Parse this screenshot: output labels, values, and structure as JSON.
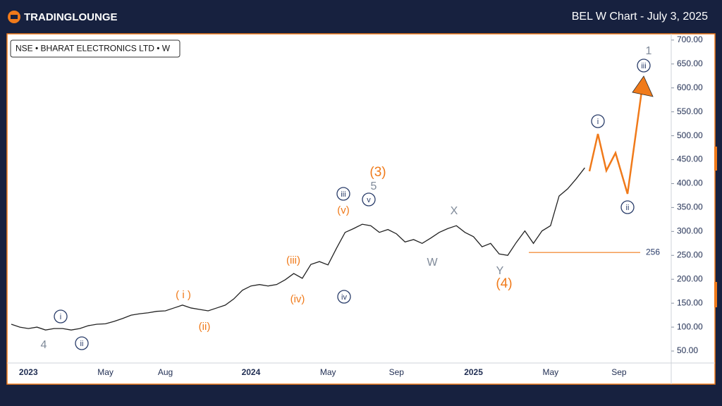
{
  "chart_data": {
    "type": "line",
    "brand": "TRADINGLOUNGE",
    "title": "BEL W Chart - July 3, 2025",
    "symbol": "NSE • BHARAT ELECTRONICS LTD • W",
    "categories": [
      null,
      null,
      "2023",
      null,
      null,
      null,
      null,
      null,
      null,
      null,
      null,
      "May",
      null,
      null,
      null,
      null,
      null,
      null,
      "Aug",
      null,
      null,
      null,
      null,
      null,
      null,
      null,
      null,
      null,
      "2024",
      null,
      null,
      null,
      null,
      null,
      null,
      null,
      null,
      "May",
      null,
      null,
      null,
      null,
      null,
      null,
      null,
      "Sep",
      null,
      null,
      null,
      null,
      null,
      null,
      null,
      null,
      "2025",
      null,
      null,
      null,
      null,
      null,
      null,
      null,
      null,
      "May",
      null,
      null,
      null,
      null,
      null,
      null,
      null,
      "Sep",
      null,
      null,
      null,
      null,
      null,
      null
    ],
    "series": [
      {
        "name": null,
        "color": "#222222",
        "values": [
          106,
          100,
          97,
          100,
          94,
          97,
          97,
          94,
          97,
          103,
          106,
          107,
          112,
          118,
          125,
          128,
          130,
          133,
          134,
          140,
          146,
          140,
          137,
          134,
          140,
          146,
          159,
          177,
          186,
          189,
          186,
          189,
          199,
          212,
          202,
          231,
          237,
          230,
          265,
          298,
          306,
          315,
          312,
          298,
          304,
          295,
          278,
          283,
          275,
          286,
          298,
          306,
          312,
          298,
          289,
          268,
          275,
          253,
          250,
          277,
          301,
          275,
          301,
          312,
          374,
          389,
          410,
          433,
          null,
          null,
          null,
          null,
          null,
          null,
          null,
          null,
          null,
          null
        ]
      }
    ],
    "ylim": [
      25,
      713
    ],
    "yticks": [
      {
        "value": 50,
        "label": "50.00"
      },
      {
        "value": 100,
        "label": "100.00"
      },
      {
        "value": 150,
        "label": "150.00"
      },
      {
        "value": 200,
        "label": "200.00"
      },
      {
        "value": 250,
        "label": "250.00"
      },
      {
        "value": 300,
        "label": "300.00"
      },
      {
        "value": 350,
        "label": "350.00"
      },
      {
        "value": 400,
        "label": "400.00"
      },
      {
        "value": 450,
        "label": "450.00"
      },
      {
        "value": 500,
        "label": "500.00"
      },
      {
        "value": 550,
        "label": "550.00"
      },
      {
        "value": 600,
        "label": "600.00"
      },
      {
        "value": 650,
        "label": "650.00"
      },
      {
        "value": 700,
        "label": "700.00"
      }
    ],
    "reference_line": {
      "value": 256,
      "color": "#f07a1a"
    },
    "annotations": [
      {
        "text": "4",
        "color": "#7f8a99",
        "circled": false
      },
      {
        "text": "i",
        "color": "#2a3d6a",
        "circled": true
      },
      {
        "text": "ii",
        "color": "#2a3d6a",
        "circled": true
      },
      {
        "text": "( i )",
        "color": "#f07a1a",
        "circled": false
      },
      {
        "text": "(ii)",
        "color": "#f07a1a",
        "circled": false
      },
      {
        "text": "(iii)",
        "color": "#f07a1a",
        "circled": false
      },
      {
        "text": "(iv)",
        "color": "#f07a1a",
        "circled": false
      },
      {
        "text": "iv",
        "color": "#2a3d6a",
        "circled": true
      },
      {
        "text": "iii",
        "color": "#2a3d6a",
        "circled": true
      },
      {
        "text": "(v)",
        "color": "#f07a1a",
        "circled": false
      },
      {
        "text": "v",
        "color": "#2a3d6a",
        "circled": true
      },
      {
        "text": "5",
        "color": "#7f8a99",
        "circled": false
      },
      {
        "text": "(3)",
        "color": "#f07a1a",
        "circled": false
      },
      {
        "text": "X",
        "color": "#7f8a99",
        "circled": false
      },
      {
        "text": "W",
        "color": "#7f8a99",
        "circled": false
      },
      {
        "text": "Y",
        "color": "#7f8a99",
        "circled": false
      },
      {
        "text": "(4)",
        "color": "#f07a1a",
        "circled": false
      },
      {
        "text": "i",
        "color": "#2a3d6a",
        "circled": true
      },
      {
        "text": "ii",
        "color": "#2a3d6a",
        "circled": true
      },
      {
        "text": "iii",
        "color": "#2a3d6a",
        "circled": true
      },
      {
        "text": "1",
        "color": "#7f8a99",
        "circled": false
      }
    ]
  }
}
